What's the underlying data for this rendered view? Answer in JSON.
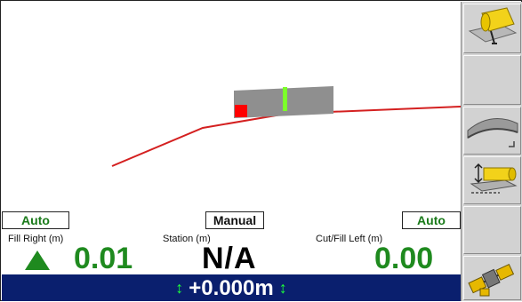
{
  "modes": {
    "left": "Auto",
    "center": "Manual",
    "right": "Auto"
  },
  "readouts": {
    "fill_right_label": "Fill Right (m)",
    "fill_right_value": "0.01",
    "station_label": "Station (m)",
    "station_value": "N/A",
    "cutfill_left_label": "Cut/Fill Left (m)",
    "cutfill_left_value": "0.00"
  },
  "bottom_bar": {
    "value": "+0.000m"
  },
  "colors": {
    "accent_green": "#1f8a1f",
    "bar_blue": "#0a1f6e",
    "design_line_red": "#d42020",
    "marker_red": "#ff0000",
    "marker_green": "#7cff2a"
  },
  "icons": {
    "fill_direction": "up-arrow-icon",
    "bottom_bar_arrows": "vertical-double-arrow-icon",
    "sidebar": [
      "blade-yellow-icon",
      "empty",
      "surface-profile-icon",
      "blade-offset-icon",
      "empty",
      "gps-satellite-icon"
    ]
  }
}
